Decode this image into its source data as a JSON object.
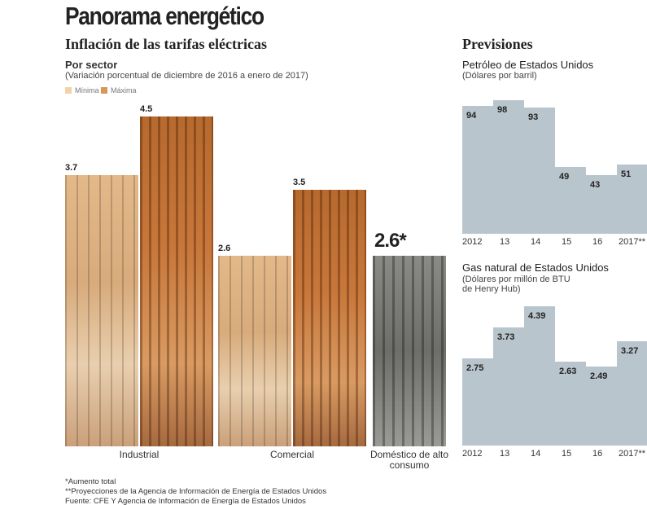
{
  "header": {
    "title": "Panorama energético",
    "subtitle": "Inflación de las tarifas eléctricas"
  },
  "chart_data": [
    {
      "type": "bar",
      "title": "Por sector",
      "subtitle": "(Variación porcentual de diciembre de 2016 a enero de 2017)",
      "categories": [
        "Industrial",
        "Comercial",
        "Doméstico de alto consumo"
      ],
      "series": [
        {
          "name": "Mínima",
          "values": [
            3.7,
            2.6,
            null
          ],
          "labels": [
            "3.7",
            "2.6",
            ""
          ],
          "color": "#f1d3a8"
        },
        {
          "name": "Máxima",
          "values": [
            4.5,
            3.5,
            null
          ],
          "labels": [
            "4.5",
            "3.5",
            ""
          ],
          "color": "#d9955a"
        }
      ],
      "total": {
        "category": "Doméstico de alto consumo",
        "value": 2.6,
        "label": "2.6*"
      },
      "ylim": [
        0,
        4.5
      ]
    },
    {
      "type": "bar",
      "section": "Previsiones",
      "title": "Petróleo de Estados Unidos",
      "ylabel": "(Dólares por barril)",
      "categories": [
        "2012",
        "13",
        "14",
        "15",
        "16",
        "2017**"
      ],
      "values": [
        94,
        98,
        93,
        49,
        43,
        51
      ],
      "labels": [
        "94",
        "98",
        "93",
        "49",
        "43",
        "51"
      ],
      "color": "#b9c5cc"
    },
    {
      "type": "bar",
      "title": "Gas natural de Estados Unidos",
      "ylabel": "(Dólares por millón de BTU de Henry Hub)",
      "ylabel_lines": [
        "(Dólares por millón de BTU",
        "de Henry Hub)"
      ],
      "categories": [
        "2012",
        "13",
        "14",
        "15",
        "16",
        "2017**"
      ],
      "values": [
        2.75,
        3.73,
        4.39,
        2.63,
        2.49,
        3.27
      ],
      "labels": [
        "2.75",
        "3.73",
        "4.39",
        "2.63",
        "2.49",
        "3.27"
      ],
      "color": "#b9c5cc"
    }
  ],
  "footnotes": [
    "*Aumento total",
    "**Proyecciones de la Agencia de Información de Energía de Estados Unidos",
    "Fuente: CFE Y Agencia de Información de Energía de Estados Unidos"
  ]
}
